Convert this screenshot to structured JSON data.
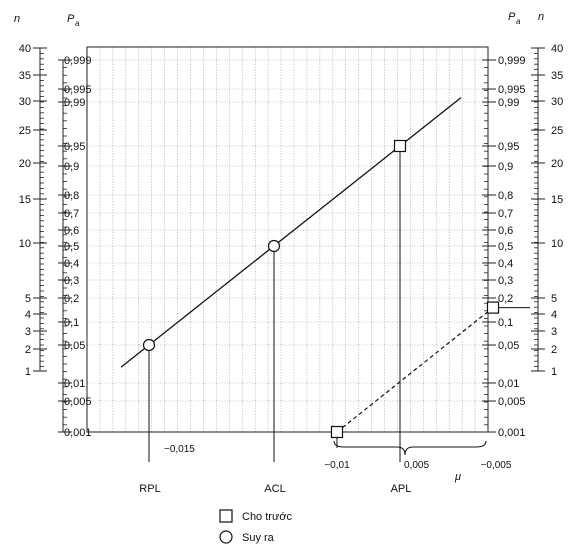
{
  "chart_data": {
    "type": "scatter",
    "title": "",
    "axes": {
      "left_outer_label": "n",
      "left_inner_label": "P",
      "left_inner_subscript": "a",
      "right_inner_label": "P",
      "right_inner_subscript": "a",
      "right_outer_label": "n",
      "x_label": "μ",
      "pa_ticks": [
        "0,999",
        "0,995",
        "0,99",
        "0,95",
        "0,9",
        "0,8",
        "0,7",
        "0,6",
        "0,5",
        "0,4",
        "0,3",
        "0,2",
        "0,1",
        "0,05",
        "0,01",
        "0,005",
        "0,001"
      ],
      "n_ticks": [
        "40",
        "35",
        "30",
        "25",
        "20",
        "15",
        "10",
        "5",
        "4",
        "3",
        "2",
        "1"
      ],
      "x_ticks": [
        "−0,015",
        "−0,01",
        "0,005",
        "−0,005"
      ]
    },
    "series": [
      {
        "name": "Cho trước",
        "marker": "square",
        "points": [
          {
            "label": "APL",
            "pa": 0.95
          },
          {
            "x": -0.01,
            "pa": 0.001
          },
          {
            "x": -0.005,
            "pa": 0.16
          }
        ]
      },
      {
        "name": "Suy ra",
        "marker": "circle",
        "points": [
          {
            "label": "RPL",
            "pa": 0.05
          },
          {
            "label": "ACL",
            "pa": 0.5
          }
        ]
      }
    ],
    "lines": [
      {
        "style": "solid",
        "from_pa": 0.03,
        "to_pa": 0.992
      },
      {
        "style": "dashed",
        "from_x": -0.01,
        "from_pa": 0.001,
        "to_x": -0.005,
        "to_pa": 0.16
      }
    ],
    "limit_labels": [
      "RPL",
      "ACL",
      "APL"
    ],
    "legend": {
      "position": "bottom",
      "entries": [
        {
          "marker": "square",
          "label": "Cho trước"
        },
        {
          "marker": "circle",
          "label": "Suy ra"
        }
      ]
    }
  }
}
